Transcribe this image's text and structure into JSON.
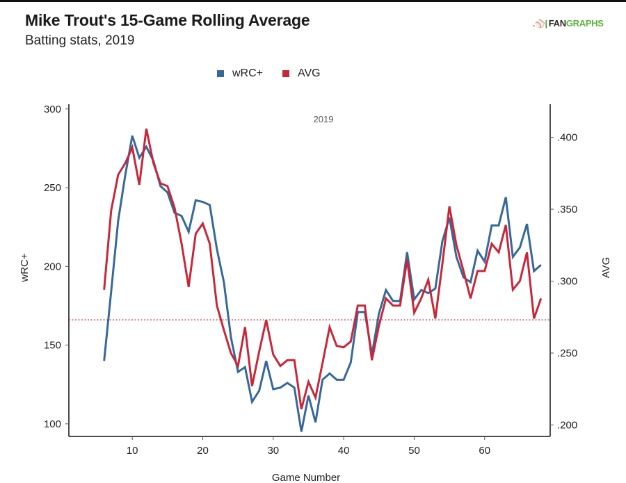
{
  "header": {
    "title": "Mike Trout's 15-Game Rolling Average",
    "subtitle": "Batting stats, 2019",
    "logo_text_dark": "FAN",
    "logo_text_green": "GRAPHS",
    "logo_icon": "batter-icon"
  },
  "colors": {
    "wrc": "#36689a",
    "avg": "#c8273a",
    "reference_line": "#c8273a",
    "logo_green": "#5ab43c"
  },
  "chart_data": {
    "type": "line",
    "title": "Mike Trout's 15-Game Rolling Average",
    "subtitle": "Batting stats, 2019",
    "panel_label": "2019",
    "xlabel": "Game Number",
    "ylabel_left": "wRC+",
    "ylabel_right": "AVG",
    "xlim": [
      1,
      69.3
    ],
    "ylim_left": [
      92,
      303
    ],
    "ylim_right": [
      0.192,
      0.423
    ],
    "xticks": [
      10,
      20,
      30,
      40,
      50,
      60
    ],
    "xtick_labels": [
      "10",
      "20",
      "30",
      "40",
      "50",
      "60"
    ],
    "yticks_left": [
      100,
      150,
      200,
      250,
      300
    ],
    "ytick_labels_left": [
      "100",
      "150",
      "200",
      "250",
      "300"
    ],
    "yticks_right": [
      0.2,
      0.25,
      0.3,
      0.35,
      0.4
    ],
    "ytick_labels_right": [
      ".200",
      ".250",
      ".300",
      ".350",
      ".400"
    ],
    "grid": false,
    "legend": {
      "placement": "top-center",
      "entries": [
        "wRC+",
        "AVG"
      ]
    },
    "reference_line": {
      "axis": "left",
      "value": 166,
      "style": "dotted",
      "note": "average AVG reference"
    },
    "x": [
      6,
      7,
      8,
      9,
      10,
      11,
      12,
      13,
      14,
      15,
      16,
      17,
      18,
      19,
      20,
      21,
      22,
      23,
      24,
      25,
      26,
      27,
      28,
      29,
      30,
      31,
      32,
      33,
      34,
      35,
      36,
      37,
      38,
      39,
      40,
      41,
      42,
      43,
      44,
      45,
      46,
      47,
      48,
      49,
      50,
      51,
      52,
      53,
      54,
      55,
      56,
      57,
      58,
      59,
      60,
      61,
      62,
      63,
      64,
      65,
      66,
      67,
      68
    ],
    "series": [
      {
        "name": "wRC+",
        "axis": "left",
        "values": [
          140,
          184,
          229,
          258,
          283,
          269,
          276,
          267,
          251,
          247,
          234,
          232,
          222,
          242,
          241,
          239,
          211,
          190,
          155,
          133,
          136,
          114,
          121,
          140,
          122,
          123,
          126,
          123,
          95,
          118,
          101,
          128,
          132,
          128,
          128,
          139,
          171,
          171,
          144,
          170,
          185,
          178,
          178,
          209,
          179,
          185,
          183,
          186,
          216,
          231,
          206,
          193,
          190,
          210,
          203,
          226,
          226,
          244,
          206,
          212,
          227,
          197,
          201
        ]
      },
      {
        "name": "AVG",
        "axis": "right",
        "values": [
          0.294,
          0.349,
          0.374,
          0.382,
          0.393,
          0.367,
          0.406,
          0.382,
          0.368,
          0.366,
          0.351,
          0.326,
          0.296,
          0.333,
          0.34,
          0.326,
          0.283,
          0.266,
          0.25,
          0.241,
          0.268,
          0.227,
          0.251,
          0.273,
          0.249,
          0.241,
          0.245,
          0.245,
          0.211,
          0.23,
          0.219,
          0.243,
          0.268,
          0.255,
          0.254,
          0.258,
          0.283,
          0.283,
          0.245,
          0.269,
          0.288,
          0.283,
          0.283,
          0.315,
          0.278,
          0.288,
          0.301,
          0.274,
          0.312,
          0.352,
          0.325,
          0.307,
          0.288,
          0.307,
          0.307,
          0.326,
          0.32,
          0.339,
          0.294,
          0.3,
          0.32,
          0.274,
          0.288
        ]
      }
    ]
  }
}
